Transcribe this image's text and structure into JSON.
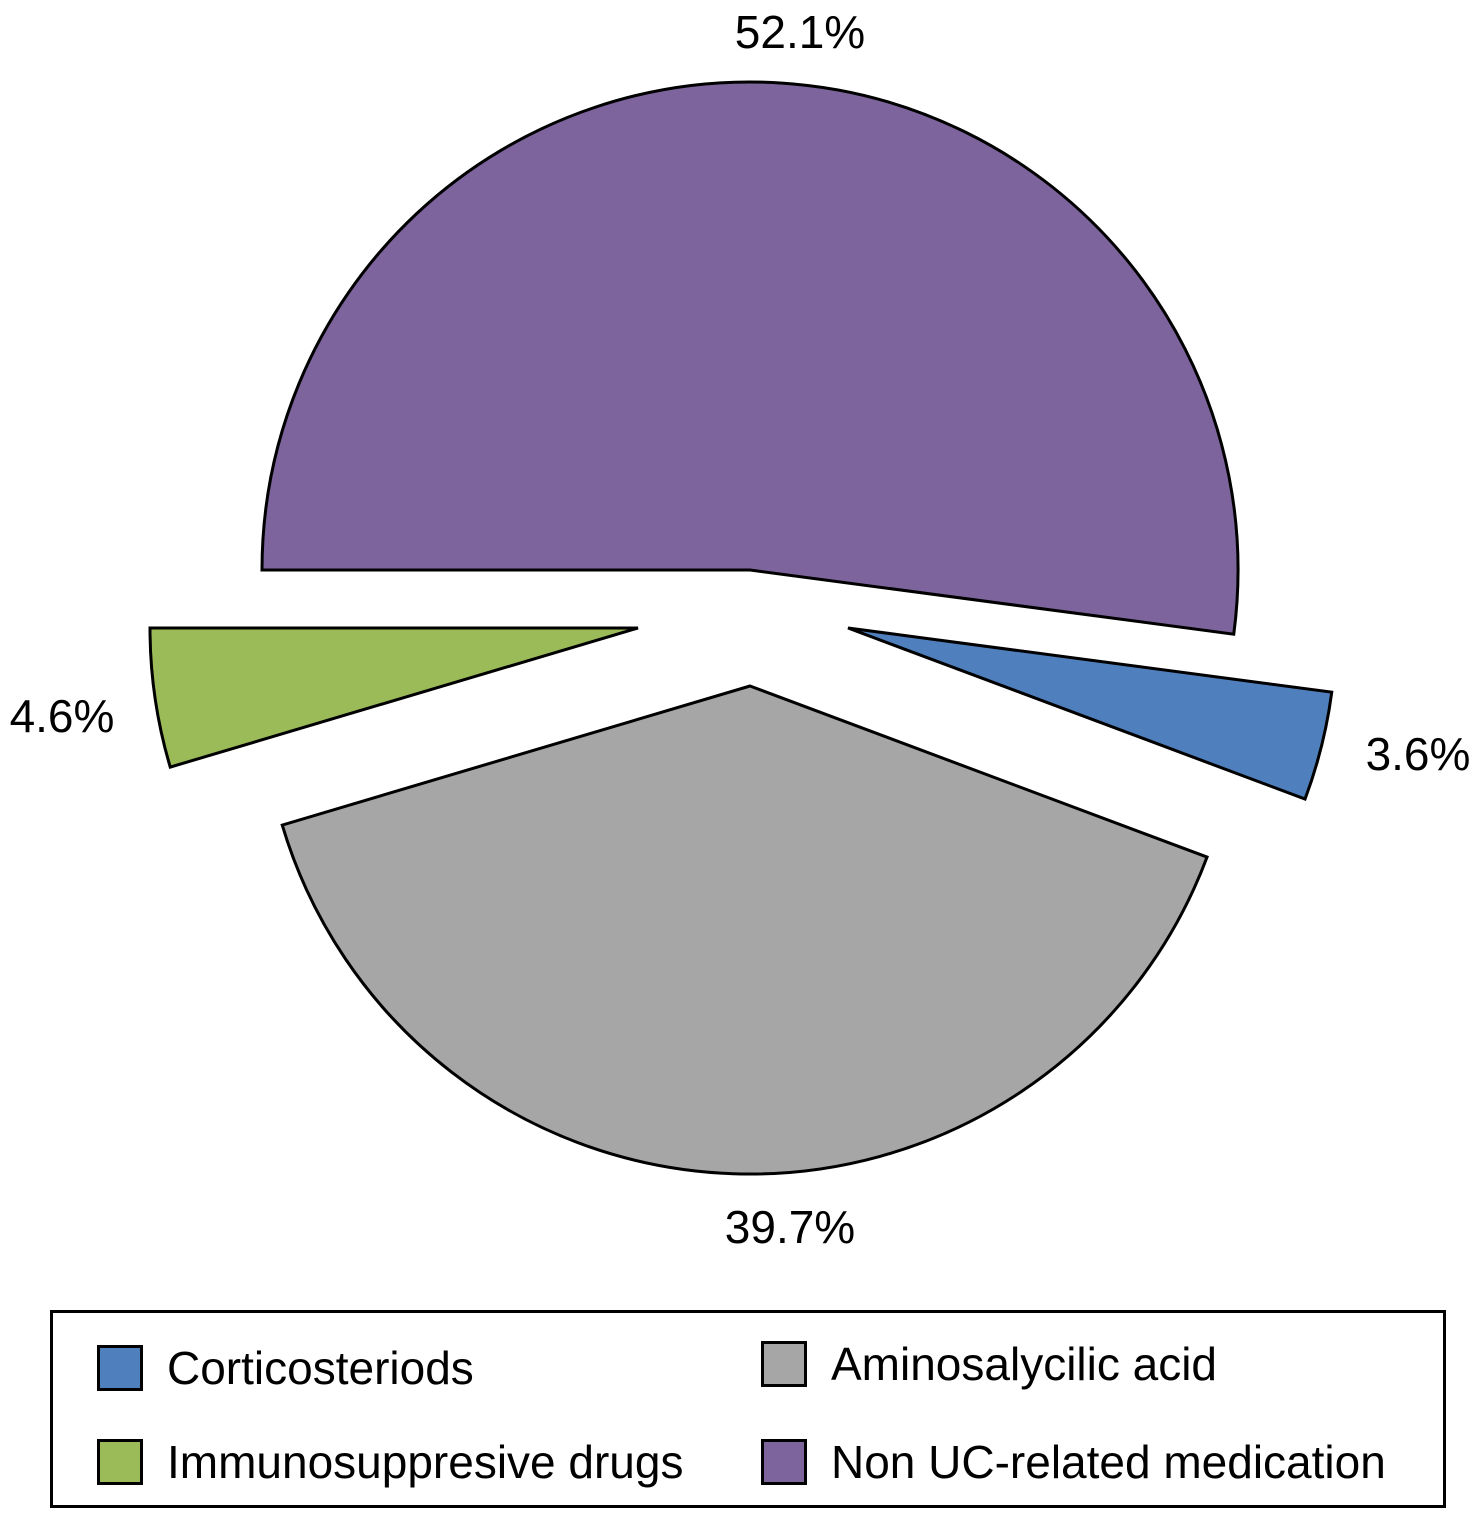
{
  "chart_data": {
    "type": "pie",
    "title": "",
    "legend_placement": "bottom",
    "slices": [
      {
        "label": "Non UC-related medication",
        "value": 52.1,
        "value_label": "52.1%",
        "color": "#7d649c",
        "exploded": false
      },
      {
        "label": "Corticosteriods",
        "value": 3.6,
        "value_label": "3.6%",
        "color": "#4f80bd",
        "exploded": true
      },
      {
        "label": "Aminosalycilic acid",
        "value": 39.7,
        "value_label": "39.7%",
        "color": "#a6a6a6",
        "exploded": true
      },
      {
        "label": "Immunosuppresive drugs",
        "value": 4.6,
        "value_label": "4.6%",
        "color": "#9bbb59",
        "exploded": true
      }
    ]
  },
  "legend": {
    "items": [
      {
        "label": "Corticosteriods",
        "color": "#4f80bd"
      },
      {
        "label": "Aminosalycilic acid",
        "color": "#a6a6a6"
      },
      {
        "label": "Immunosuppresive drugs",
        "color": "#9bbb59"
      },
      {
        "label": "Non UC-related medication",
        "color": "#7d649c"
      }
    ]
  }
}
